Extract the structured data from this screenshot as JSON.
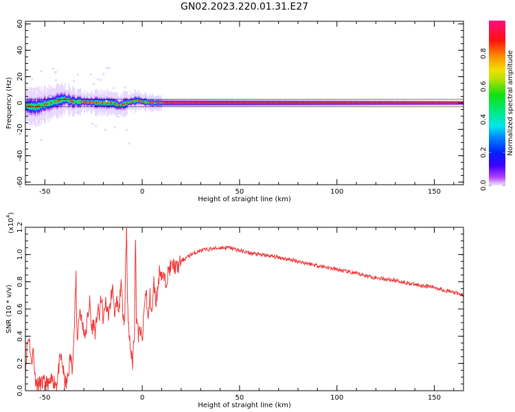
{
  "title": "GN02.2023.220.01.31.E27",
  "chart_data": [
    {
      "type": "heatmap",
      "title": "GN02.2023.220.01.31.E27",
      "xlabel": "Height of straight line (km)",
      "ylabel": "Frequency (Hz)",
      "xlim": [
        -60,
        165
      ],
      "ylim": [
        -62,
        62
      ],
      "xticks": [
        -50,
        0,
        50,
        100,
        150
      ],
      "yticks": [
        -60,
        -40,
        -20,
        0,
        20,
        40,
        60
      ],
      "colorbar": {
        "label": "Normalized spectral amplitude",
        "range": [
          0,
          1
        ],
        "ticks": [
          "0.0",
          "0.2",
          "0.4",
          "0.6",
          "0.8"
        ]
      },
      "dominant_frequency_hz": 0,
      "band_center": [
        [
          -60,
          -2
        ],
        [
          -55,
          -3
        ],
        [
          -50,
          -1
        ],
        [
          -45,
          1
        ],
        [
          -40,
          3
        ],
        [
          -36,
          1
        ],
        [
          -30,
          1
        ],
        [
          -20,
          0
        ],
        [
          -15,
          0
        ],
        [
          -12,
          -2
        ],
        [
          -10,
          -1
        ],
        [
          -6,
          1
        ],
        [
          -2,
          2
        ],
        [
          0,
          1
        ],
        [
          5,
          0
        ],
        [
          165,
          0
        ]
      ],
      "band_halfwidth_hz": [
        [
          -60,
          8
        ],
        [
          -45,
          7
        ],
        [
          -30,
          5
        ],
        [
          -10,
          5
        ],
        [
          10,
          3
        ],
        [
          165,
          2
        ]
      ]
    },
    {
      "type": "line",
      "xlabel": "Height of straight line (km)",
      "ylabel": "SNR (10 * v/v)",
      "y_multiplier": "(x10^4)",
      "y_multiplier_base": "(x10",
      "y_multiplier_exp": "4",
      "xlim": [
        -60,
        165
      ],
      "ylim": [
        0,
        1.2
      ],
      "xticks": [
        -50,
        0,
        50,
        100,
        150
      ],
      "yticks": [
        "0.0",
        "0.2",
        "0.4",
        "0.6",
        "0.8",
        "1.0",
        "1.2"
      ],
      "color": "#ee3333",
      "x": [
        -60,
        -59,
        -58,
        -57,
        -56,
        -55,
        -54,
        -52,
        -50,
        -48,
        -46,
        -44,
        -43,
        -42,
        -41,
        -40,
        -39,
        -38,
        -37,
        -36,
        -35,
        -34,
        -33.5,
        -33,
        -32,
        -31,
        -30,
        -29,
        -28,
        -27,
        -26,
        -25,
        -24,
        -23,
        -22,
        -21,
        -20,
        -19,
        -18,
        -17,
        -16,
        -15,
        -14,
        -13,
        -12,
        -11,
        -10,
        -9,
        -8.5,
        -8,
        -7.5,
        -7,
        -6,
        -5,
        -4,
        -3.5,
        -3,
        -2.5,
        -2,
        -1,
        0,
        1,
        2,
        3,
        4,
        5,
        6,
        7,
        8,
        9,
        10,
        12,
        14,
        16,
        18,
        20,
        25,
        30,
        35,
        40,
        45,
        50,
        55,
        60,
        70,
        80,
        90,
        100,
        110,
        120,
        130,
        140,
        150,
        160,
        165
      ],
      "y": [
        0.15,
        0.35,
        0.4,
        0.2,
        0.3,
        0.1,
        0.05,
        0.05,
        0.06,
        0.04,
        0.08,
        0.05,
        0.15,
        0.25,
        0.2,
        0.08,
        0.04,
        0.12,
        0.25,
        0.18,
        0.4,
        0.85,
        0.35,
        0.45,
        0.6,
        0.5,
        0.45,
        0.4,
        0.55,
        0.65,
        0.45,
        0.5,
        0.42,
        0.6,
        0.55,
        0.7,
        0.5,
        0.65,
        0.6,
        0.55,
        0.7,
        0.75,
        0.55,
        0.65,
        0.55,
        0.8,
        0.6,
        0.5,
        1.0,
        1.18,
        0.6,
        0.45,
        0.3,
        0.2,
        0.45,
        1.2,
        0.55,
        0.5,
        0.4,
        0.45,
        0.35,
        0.6,
        0.75,
        0.5,
        0.7,
        0.55,
        0.8,
        0.65,
        0.75,
        0.9,
        0.85,
        0.8,
        0.9,
        0.92,
        0.9,
        0.95,
        1.0,
        1.03,
        1.04,
        1.05,
        1.05,
        1.03,
        1.01,
        1.0,
        0.98,
        0.95,
        0.92,
        0.89,
        0.86,
        0.83,
        0.81,
        0.78,
        0.76,
        0.72,
        0.7
      ]
    }
  ]
}
